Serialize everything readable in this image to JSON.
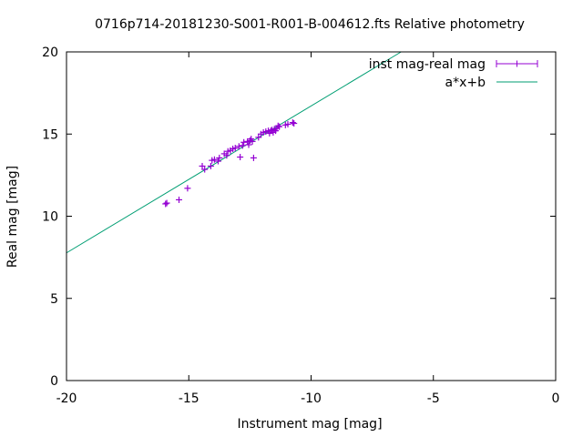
{
  "chart_data": {
    "type": "scatter",
    "title": "0716p714-20181230-S001-R001-B-004612.fts Relative photometry",
    "xlabel": "Instrument mag [mag]",
    "ylabel": "Real mag [mag]",
    "xlim": [
      -20,
      0
    ],
    "ylim": [
      0,
      20
    ],
    "x_ticks": [
      -20,
      -15,
      -10,
      -5,
      0
    ],
    "x_tick_labels": [
      "-20",
      "-15",
      "-10",
      "-5",
      "0"
    ],
    "y_ticks": [
      0,
      5,
      10,
      15,
      20
    ],
    "y_tick_labels": [
      "0",
      "5",
      "10",
      "15",
      "20"
    ],
    "grid": false,
    "legend_position": "top-right",
    "colors": {
      "points": "#9400d3",
      "fit": "#009e73",
      "axes": "#000000"
    },
    "series": [
      {
        "name": "inst mag-real mag",
        "style": "points-with-errorbars",
        "points": [
          [
            -15.95,
            10.75
          ],
          [
            -15.9,
            10.8
          ],
          [
            -15.4,
            11.0
          ],
          [
            -15.05,
            11.7
          ],
          [
            -14.45,
            13.05
          ],
          [
            -14.35,
            12.85
          ],
          [
            -14.1,
            13.05
          ],
          [
            -14.05,
            13.4
          ],
          [
            -13.95,
            13.45
          ],
          [
            -13.8,
            13.35
          ],
          [
            -13.75,
            13.55
          ],
          [
            -13.55,
            13.8
          ],
          [
            -13.45,
            13.7
          ],
          [
            -13.4,
            13.95
          ],
          [
            -13.3,
            14.0
          ],
          [
            -13.2,
            14.1
          ],
          [
            -13.1,
            14.15
          ],
          [
            -12.95,
            14.25
          ],
          [
            -12.9,
            13.6
          ],
          [
            -12.8,
            14.3
          ],
          [
            -12.75,
            14.5
          ],
          [
            -12.6,
            14.55
          ],
          [
            -12.55,
            14.35
          ],
          [
            -12.5,
            14.6
          ],
          [
            -12.45,
            14.7
          ],
          [
            -12.4,
            14.55
          ],
          [
            -12.35,
            13.55
          ],
          [
            -12.15,
            14.8
          ],
          [
            -12.05,
            15.0
          ],
          [
            -11.95,
            15.1
          ],
          [
            -11.85,
            15.15
          ],
          [
            -11.75,
            15.2
          ],
          [
            -11.7,
            15.05
          ],
          [
            -11.65,
            15.2
          ],
          [
            -11.6,
            15.25
          ],
          [
            -11.55,
            15.1
          ],
          [
            -11.5,
            15.3
          ],
          [
            -11.45,
            15.2
          ],
          [
            -11.4,
            15.35
          ],
          [
            -11.35,
            15.5
          ],
          [
            -11.3,
            15.45
          ],
          [
            -11.05,
            15.55
          ],
          [
            -10.95,
            15.6
          ],
          [
            -10.75,
            15.7
          ],
          [
            -10.7,
            15.65
          ]
        ]
      },
      {
        "name": "a*x+b",
        "style": "line",
        "slope": 0.894,
        "intercept": 25.65
      }
    ]
  }
}
